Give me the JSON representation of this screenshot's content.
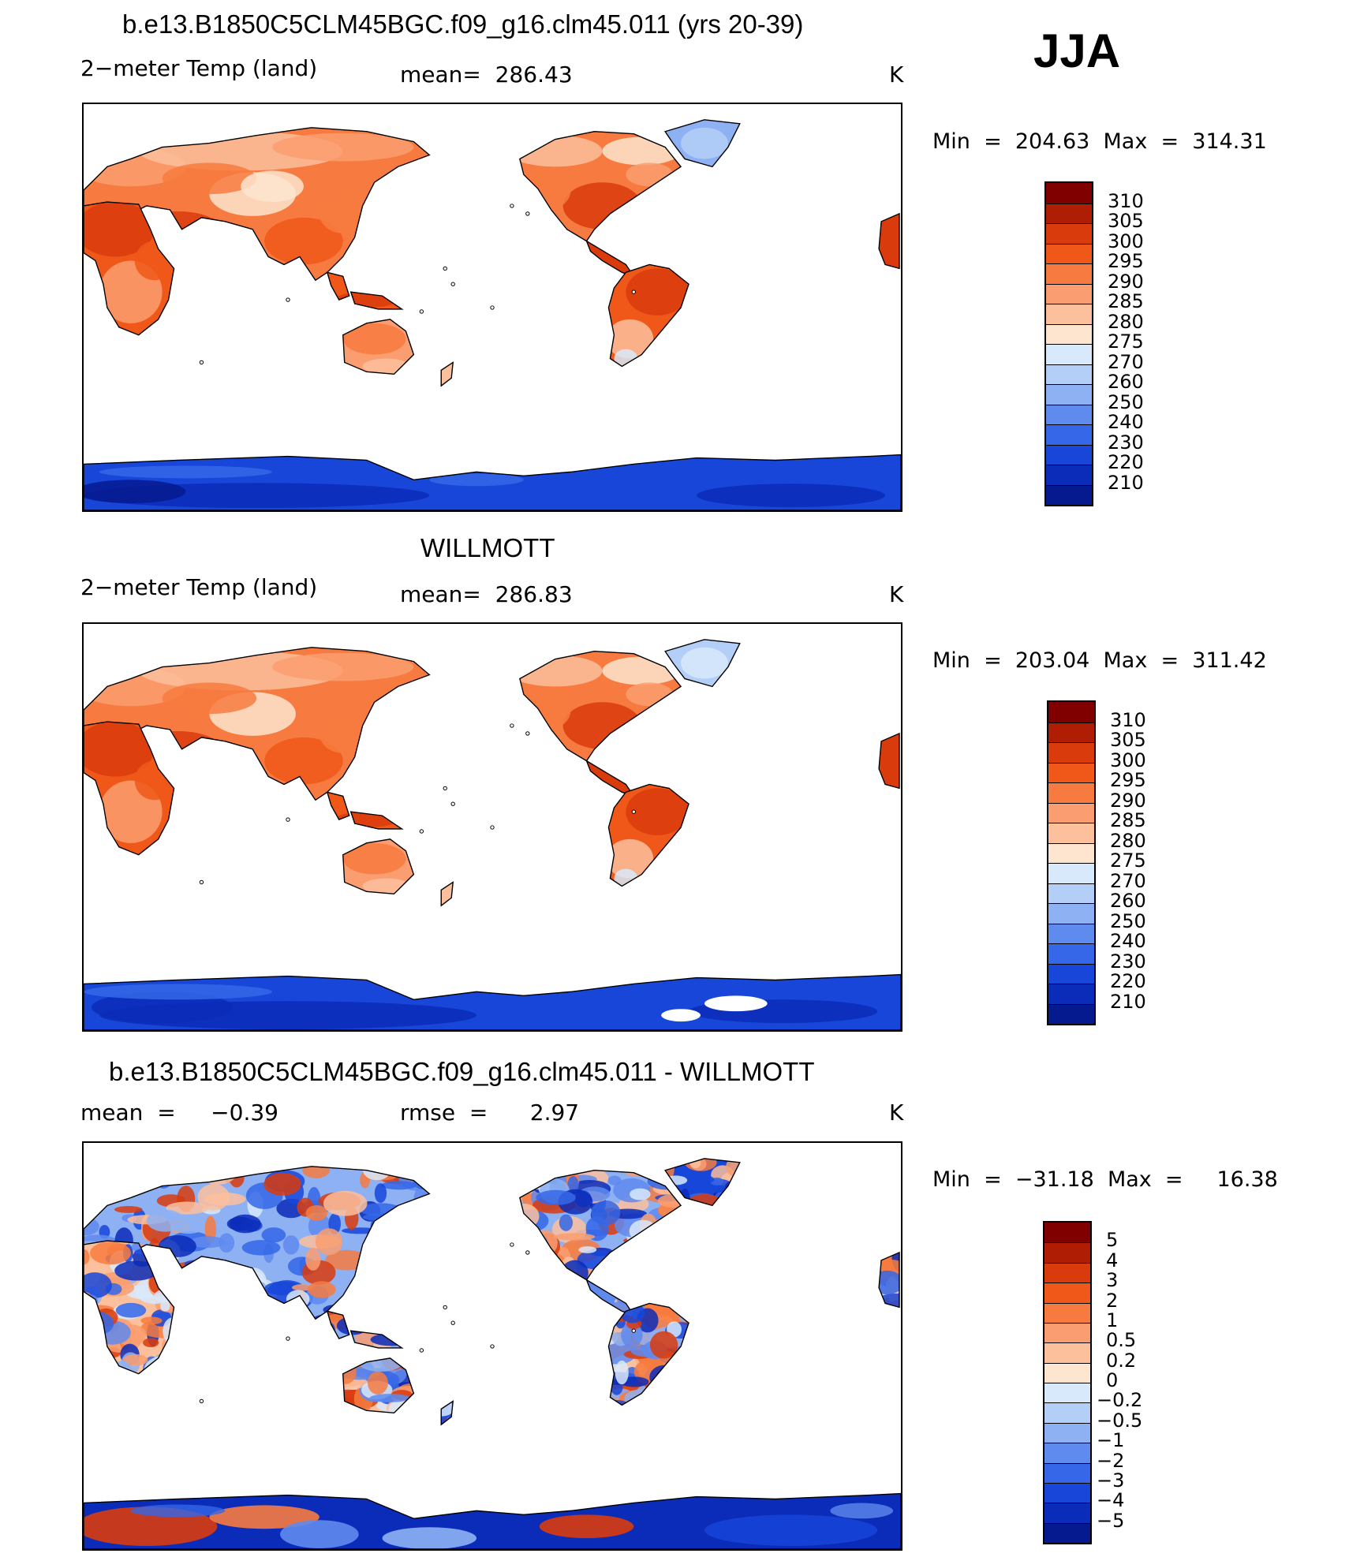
{
  "season": "JJA",
  "panels": [
    {
      "title": "b.e13.B1850C5CLM45BGC.f09_g16.clm45.011 (yrs 20-39)",
      "left_label": "2−meter Temp (land)",
      "center_label": "mean=  286.43",
      "unit": "K",
      "minmax": "Min  =  204.63  Max  =  314.31",
      "variant": "model"
    },
    {
      "title": "WILLMOTT",
      "left_label": "2−meter Temp (land)",
      "center_label": "mean=  286.83",
      "unit": "K",
      "minmax": "Min  =  203.04  Max  =  311.42",
      "variant": "obs"
    },
    {
      "title": "b.e13.B1850C5CLM45BGC.f09_g16.clm45.011 - WILLMOTT",
      "left_label": "mean  =     −0.39",
      "center_label": "rmse  =      2.97",
      "unit": "K",
      "minmax": "Min  =  −31.18  Max  =     16.38",
      "variant": "diff"
    }
  ],
  "colorbars": [
    {
      "labels": [
        "310",
        "305",
        "300",
        "295",
        "290",
        "285",
        "280",
        "275",
        "270",
        "260",
        "250",
        "240",
        "230",
        "220",
        "210"
      ],
      "colors": [
        "#800000",
        "#b01d05",
        "#d93b0d",
        "#f0581a",
        "#f77b40",
        "#fa9d70",
        "#fcc09c",
        "#fde5cf",
        "#d8e9fb",
        "#b4cff7",
        "#8db1f3",
        "#5f8aee",
        "#3567e8",
        "#1746d9",
        "#0a2cb8",
        "#061a8f"
      ]
    },
    {
      "labels": [
        "310",
        "305",
        "300",
        "295",
        "290",
        "285",
        "280",
        "275",
        "270",
        "260",
        "250",
        "240",
        "230",
        "220",
        "210"
      ],
      "colors": [
        "#800000",
        "#b01d05",
        "#d93b0d",
        "#f0581a",
        "#f77b40",
        "#fa9d70",
        "#fcc09c",
        "#fde5cf",
        "#d8e9fb",
        "#b4cff7",
        "#8db1f3",
        "#5f8aee",
        "#3567e8",
        "#1746d9",
        "#0a2cb8",
        "#061a8f"
      ]
    },
    {
      "labels": [
        "5",
        "4",
        "3",
        "2",
        "1",
        "0.5",
        "0.2",
        "0",
        "−0.2",
        "−0.5",
        "−1",
        "−2",
        "−3",
        "−4",
        "−5"
      ],
      "colors": [
        "#800000",
        "#b01d05",
        "#d93b0d",
        "#f0581a",
        "#f77b40",
        "#fa9d70",
        "#fcc09c",
        "#fde5cf",
        "#d8e9fb",
        "#b4cff7",
        "#8db1f3",
        "#5f8aee",
        "#3567e8",
        "#1746d9",
        "#0a2cb8",
        "#061a8f"
      ]
    }
  ]
}
